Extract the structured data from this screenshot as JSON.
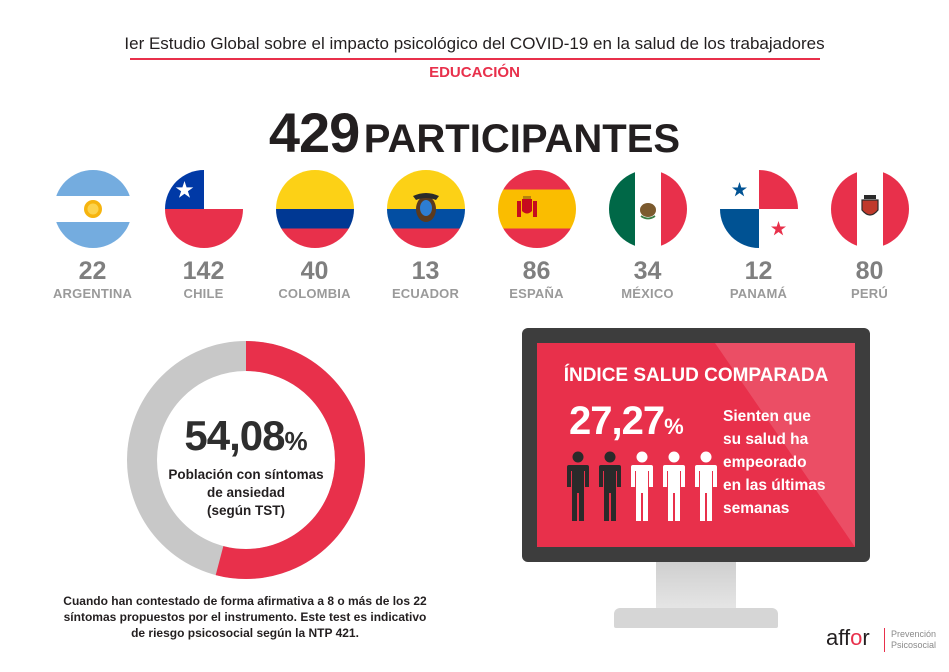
{
  "header": {
    "title": "Ier Estudio Global sobre el impacto psicológico del COVID-19 en la salud de los trabajadores",
    "sector": "EDUCACIÓN"
  },
  "participants": {
    "count": "429",
    "label": "PARTICIPANTES"
  },
  "countries": [
    {
      "count": "22",
      "name": "ARGENTINA"
    },
    {
      "count": "142",
      "name": "CHILE"
    },
    {
      "count": "40",
      "name": "COLOMBIA"
    },
    {
      "count": "13",
      "name": "ECUADOR"
    },
    {
      "count": "86",
      "name": "ESPAÑA"
    },
    {
      "count": "34",
      "name": "MÉXICO"
    },
    {
      "count": "12",
      "name": "PANAMÁ"
    },
    {
      "count": "80",
      "name": "PERÚ"
    }
  ],
  "anxiety": {
    "value": "54,08",
    "fraction": 0.5408,
    "percent_sign": "%",
    "caption_line1": "Población con síntomas",
    "caption_line2": "de ansiedad",
    "caption_line3": "(según TST)",
    "note_line1": "Cuando han contestado de forma afirmativa a 8 o más de los 22",
    "note_line2": "síntomas propuestos por el instrumento. Este test es indicativo",
    "note_line3": "de riesgo psicosocial según la NTP 421."
  },
  "health_index": {
    "title": "ÍNDICE SALUD COMPARADA",
    "value": "27,27",
    "percent_sign": "%",
    "people_total": 5,
    "people_highlighted": 2,
    "text_line1": "Sienten que",
    "text_line2": "su salud ha",
    "text_line3": "empeorado",
    "text_line4": "en las últimas",
    "text_line5": "semanas"
  },
  "brand": {
    "logo_prefix": "aff",
    "logo_accent": "o",
    "logo_suffix": "r",
    "sub_line1": "Prevención",
    "sub_line2": "Psicosocial"
  },
  "colors": {
    "accent": "#e8304b",
    "donut_rest": "#c8c8c8",
    "dark": "#231f20",
    "muted": "#7f7f7f"
  }
}
